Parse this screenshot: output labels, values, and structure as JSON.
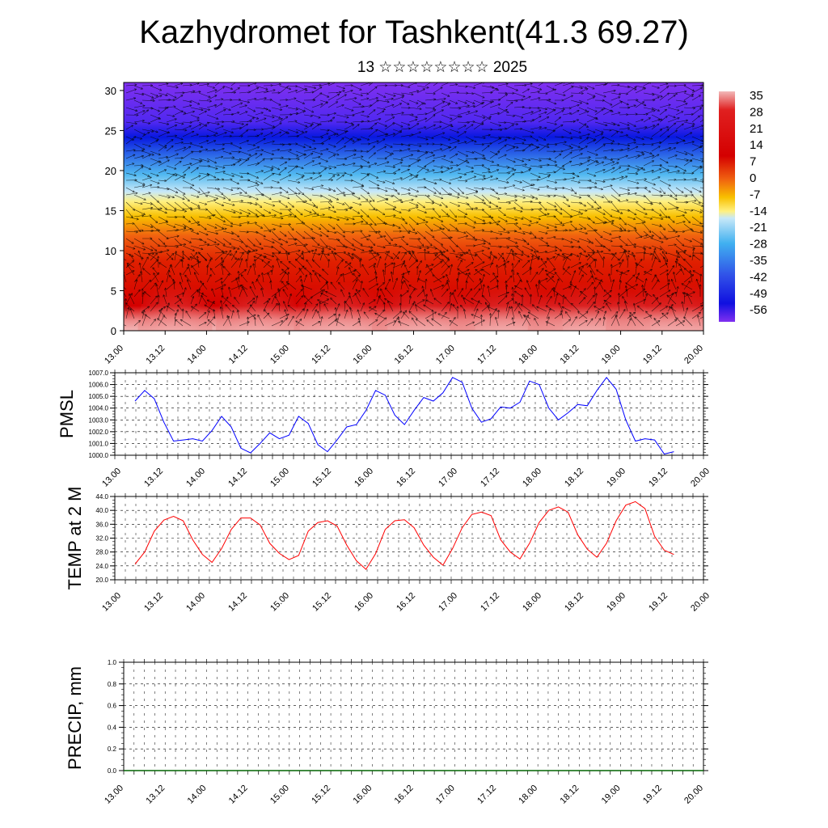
{
  "title": "Kazhydromet for Tashkent(41.3 69.27)",
  "subtitle": "13 ☆☆☆☆☆☆☆☆ 2025",
  "x_ticks": [
    "13.00",
    "13.12",
    "14.00",
    "14.12",
    "15.00",
    "15.12",
    "16.00",
    "16.12",
    "17.00",
    "17.12",
    "18.00",
    "18.12",
    "19.00",
    "19.12",
    "20.00"
  ],
  "colorbar_labels": [
    "35",
    "28",
    "21",
    "14",
    "7",
    "0",
    "-7",
    "-14",
    "-21",
    "-28",
    "-35",
    "-42",
    "-49",
    "-56"
  ],
  "colors": {
    "pmsl_line": "#0000ff",
    "temp_line": "#ff0000",
    "precip_line": "#006400"
  },
  "chart_data": [
    {
      "type": "heatmap",
      "title": "",
      "xlabel": "",
      "ylabel": "",
      "x": [
        "13.00",
        "13.12",
        "14.00",
        "14.12",
        "15.00",
        "15.12",
        "16.00",
        "16.12",
        "17.00",
        "17.12",
        "18.00",
        "18.12",
        "19.00",
        "19.12",
        "20.00"
      ],
      "y_ticks": [
        0,
        5,
        10,
        15,
        20,
        25,
        30
      ],
      "ylim": [
        0,
        31
      ],
      "color_scale": {
        "min": -56,
        "max": 35,
        "labels": [
          "35",
          "28",
          "21",
          "14",
          "7",
          "0",
          "-7",
          "-14",
          "-21",
          "-28",
          "-35",
          "-42",
          "-49",
          "-56"
        ]
      },
      "overlay": "wind vectors",
      "description_levels": [
        {
          "height": 0,
          "value": 30
        },
        {
          "height": 5,
          "value": 24
        },
        {
          "height": 10,
          "value": 16
        },
        {
          "height": 15,
          "value": -2
        },
        {
          "height": 18,
          "value": -14
        },
        {
          "height": 20,
          "value": -28
        },
        {
          "height": 22.5,
          "value": -42
        },
        {
          "height": 25,
          "value": -56
        },
        {
          "height": 31,
          "value": -49
        }
      ]
    },
    {
      "type": "line",
      "ylabel": "PMSL",
      "ylim": [
        1000.0,
        1007.0
      ],
      "y_ticks": [
        "1000.0",
        "1001.0",
        "1002.0",
        "1003.0",
        "1004.0",
        "1005.0",
        "1006.0",
        "1007.0"
      ],
      "x_step_hours": 3,
      "series": [
        {
          "values": [
            1004.6,
            1005.5,
            1004.8,
            1002.8,
            1001.2,
            1001.3,
            1001.4,
            1001.2,
            1002.1,
            1003.3,
            1002.4,
            1000.6,
            1000.2,
            1001.0,
            1001.9,
            1001.4,
            1001.7,
            1003.3,
            1002.7,
            1000.9,
            1000.3,
            1001.3,
            1002.4,
            1002.6,
            1003.8,
            1005.5,
            1005.1,
            1003.4,
            1002.6,
            1003.8,
            1004.9,
            1004.6,
            1005.3,
            1006.6,
            1006.2,
            1004.0,
            1002.8,
            1003.1,
            1004.1,
            1004.0,
            1004.5,
            1006.3,
            1006.0,
            1004.0,
            1003.0,
            1003.6,
            1004.3,
            1004.2,
            1005.5,
            1006.6,
            1005.6,
            1003.0,
            1001.2,
            1001.4,
            1001.3,
            1000.1,
            1000.3
          ]
        }
      ]
    },
    {
      "type": "line",
      "ylabel": "TEMP at 2 M",
      "ylim": [
        20.0,
        44.0
      ],
      "y_ticks": [
        "20.0",
        "24.0",
        "28.0",
        "32.0",
        "36.0",
        "40.0",
        "44.0"
      ],
      "x_step_hours": 3,
      "series": [
        {
          "values": [
            24.5,
            28.0,
            34.0,
            37.2,
            38.3,
            37.0,
            31.5,
            27.3,
            25.0,
            29.0,
            34.5,
            37.8,
            37.8,
            35.8,
            30.5,
            27.6,
            25.8,
            27.0,
            34.0,
            36.5,
            37.0,
            35.5,
            30.0,
            25.5,
            23.0,
            27.5,
            34.5,
            37.0,
            37.3,
            35.0,
            30.0,
            26.5,
            24.2,
            29.0,
            35.0,
            38.8,
            39.5,
            38.5,
            31.5,
            28.0,
            26.0,
            30.5,
            36.5,
            40.0,
            41.0,
            39.5,
            33.0,
            28.8,
            26.5,
            30.5,
            37.0,
            41.5,
            42.5,
            40.5,
            32.5,
            28.5,
            27.3
          ]
        }
      ]
    },
    {
      "type": "line",
      "ylabel": "PRECIP, mm",
      "ylim": [
        0.0,
        1.0
      ],
      "y_ticks": [
        "0.0",
        "0.2",
        "0.4",
        "0.6",
        "0.8",
        "1.0"
      ],
      "series": [
        {
          "values": [
            0,
            0,
            0,
            0,
            0,
            0,
            0,
            0,
            0,
            0,
            0,
            0,
            0,
            0,
            0
          ]
        }
      ]
    }
  ]
}
